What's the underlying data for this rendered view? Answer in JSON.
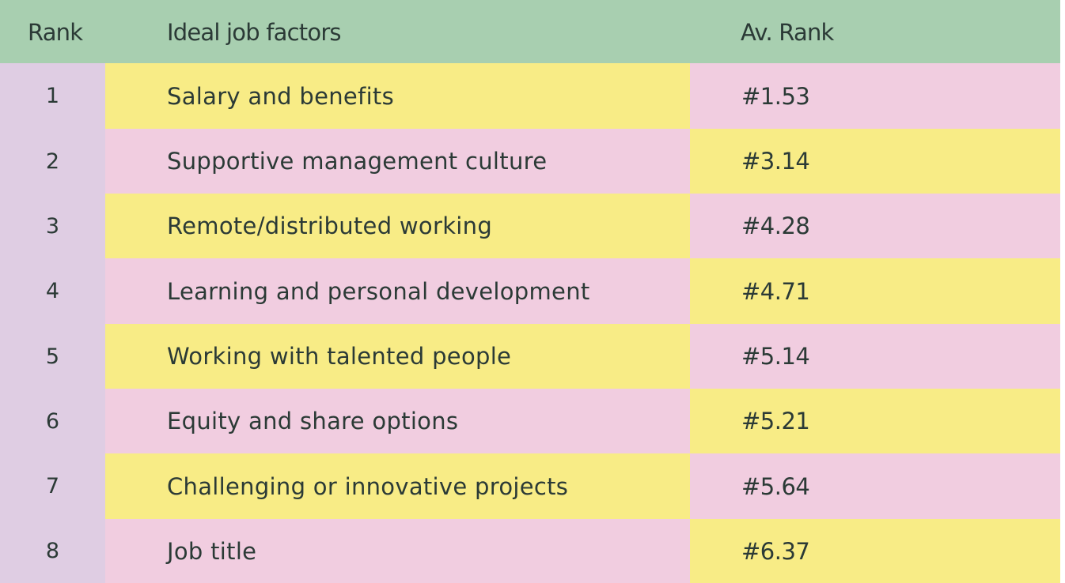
{
  "colors": {
    "header_bg": "#a8cfb0",
    "rank_column_bg": "#dfcde3",
    "yellow_cell": "#f8ec86",
    "pink_cell": "#f1cde0",
    "text": "#2b3a36"
  },
  "table": {
    "headers": {
      "rank": "Rank",
      "factor": "Ideal job factors",
      "avrank": "Av. Rank"
    },
    "rows": [
      {
        "rank": "1",
        "factor": "Salary and benefits",
        "avrank": "#1.53"
      },
      {
        "rank": "2",
        "factor": "Supportive management culture",
        "avrank": "#3.14"
      },
      {
        "rank": "3",
        "factor": "Remote/distributed working",
        "avrank": "#4.28"
      },
      {
        "rank": "4",
        "factor": "Learning and personal development",
        "avrank": "#4.71"
      },
      {
        "rank": "5",
        "factor": "Working with talented people",
        "avrank": "#5.14"
      },
      {
        "rank": "6",
        "factor": "Equity and share options",
        "avrank": "#5.21"
      },
      {
        "rank": "7",
        "factor": "Challenging or innovative projects",
        "avrank": "#5.64"
      },
      {
        "rank": "8",
        "factor": "Job title",
        "avrank": "#6.37"
      }
    ]
  }
}
